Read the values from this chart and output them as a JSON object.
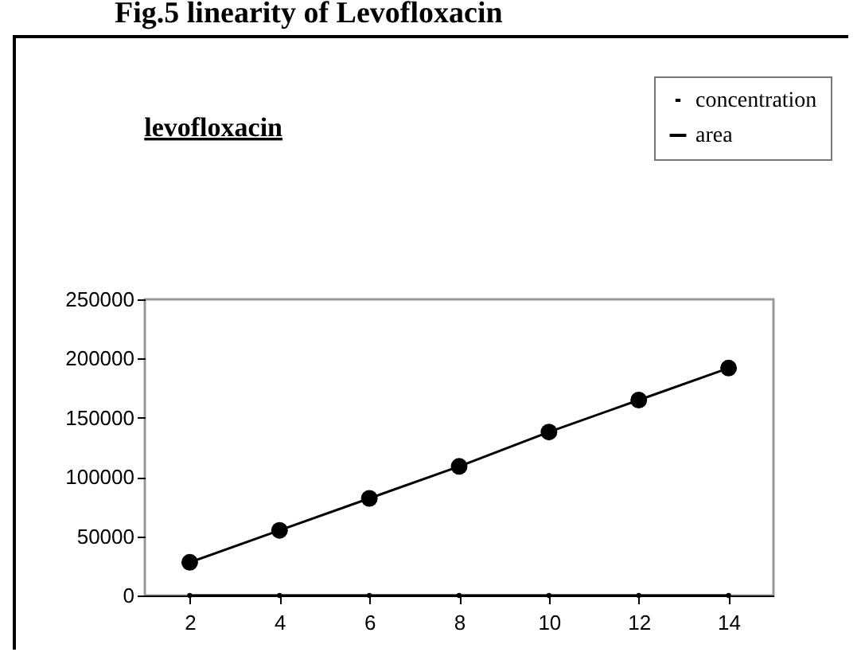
{
  "chart_data": {
    "type": "line",
    "title": "Fig.5 linearity of Levofloxacin",
    "subtitle": "levofloxacin",
    "categories": [
      "2",
      "4",
      "6",
      "8",
      "10",
      "12",
      "14"
    ],
    "series": [
      {
        "name": "concentration",
        "color": "#000000",
        "values": [
          0,
          0,
          0,
          0,
          0,
          0,
          0
        ]
      },
      {
        "name": "area",
        "color": "#000000",
        "values": [
          28000,
          55000,
          82000,
          109000,
          138000,
          165000,
          192000
        ]
      }
    ],
    "ylim": [
      0,
      250000
    ],
    "yticks": [
      0,
      50000,
      100000,
      150000,
      200000,
      250000
    ],
    "grid": false,
    "legend": "top right",
    "marker": "circle"
  }
}
